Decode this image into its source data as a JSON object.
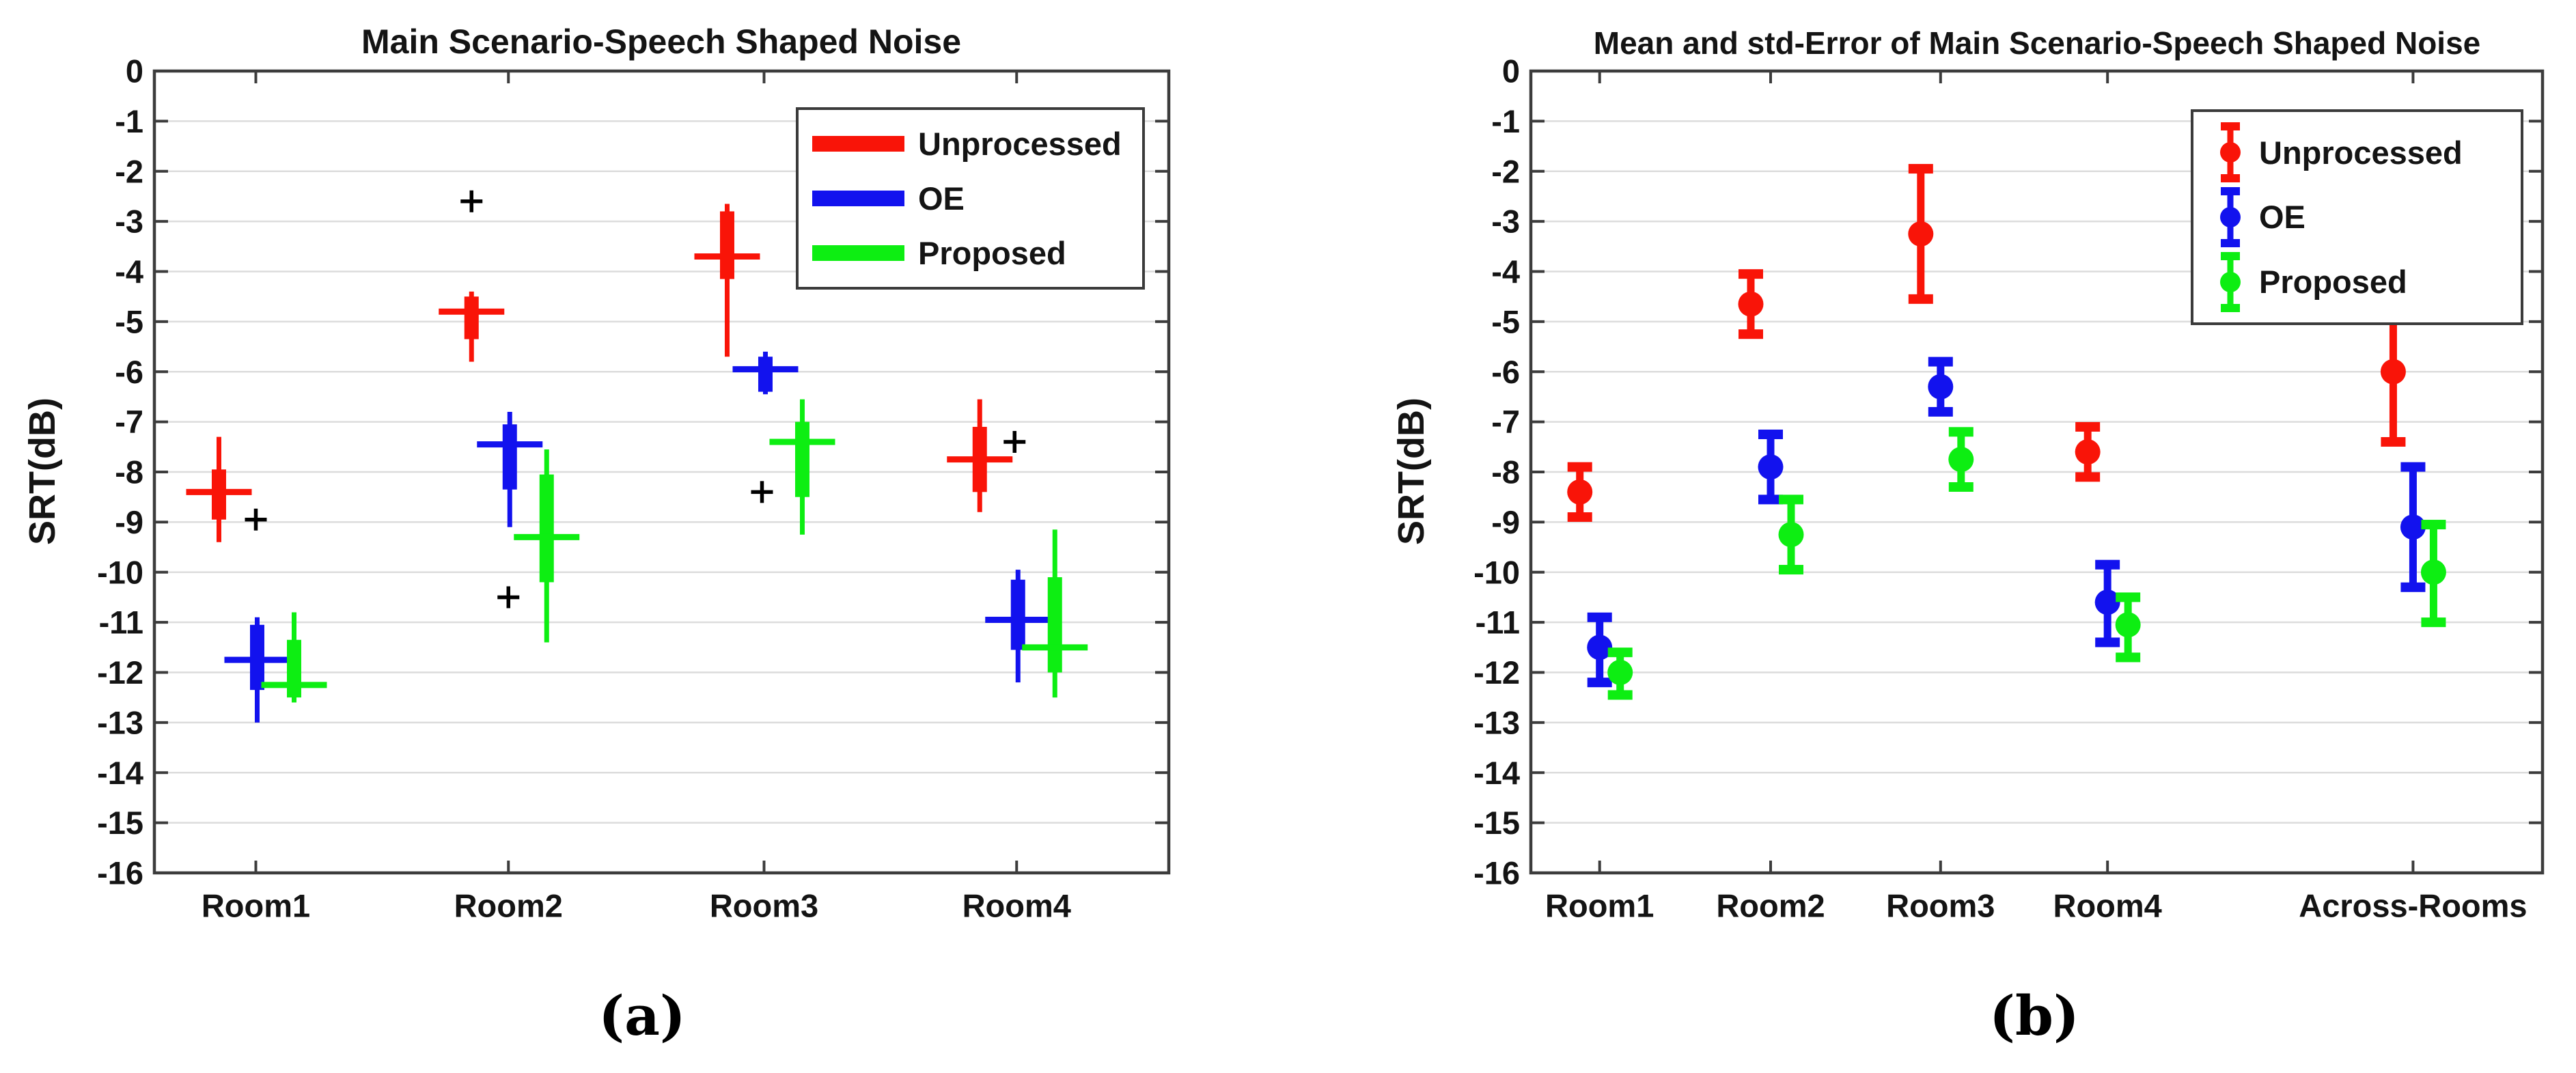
{
  "colors": {
    "red": "#f91408",
    "blue": "#1212ee",
    "green": "#0dee12",
    "outlier": "#000000",
    "grid": "#dcdcdc",
    "frame": "#3c3c3c",
    "text": "#141414"
  },
  "series_labels": [
    "Unprocessed",
    "OE",
    "Proposed"
  ],
  "chart_data": [
    {
      "type": "boxplot",
      "panel": "a",
      "title": "Main Scenario-Speech Shaped Noise",
      "ylabel": "SRT(dB)",
      "caption": "(a)",
      "ylim": [
        -16,
        0
      ],
      "ytick_labels": [
        "0",
        "-1",
        "-2",
        "-3",
        "-4",
        "-5",
        "-6",
        "-7",
        "-8",
        "-9",
        "-10",
        "-11",
        "-12",
        "-13",
        "-14",
        "-15",
        "-16"
      ],
      "categories": [
        "Room1",
        "Room2",
        "Room3",
        "Room4"
      ],
      "grid": "horizontal",
      "legend_position": "top-right",
      "legend": [
        "Unprocessed",
        "OE",
        "Proposed"
      ],
      "series": [
        {
          "name": "Unprocessed",
          "color": "red",
          "boxes": [
            {
              "whisker_low": -9.4,
              "q1": -8.95,
              "median": -8.4,
              "q3": -7.95,
              "whisker_high": -7.3
            },
            {
              "whisker_low": -5.8,
              "q1": -5.35,
              "median": -4.8,
              "q3": -4.5,
              "whisker_high": -4.4
            },
            {
              "whisker_low": -5.7,
              "q1": -4.15,
              "median": -3.7,
              "q3": -2.8,
              "whisker_high": -2.65
            },
            {
              "whisker_low": -8.8,
              "q1": -8.4,
              "median": -7.75,
              "q3": -7.1,
              "whisker_high": -6.55
            }
          ]
        },
        {
          "name": "OE",
          "color": "blue",
          "boxes": [
            {
              "whisker_low": -13.0,
              "q1": -12.35,
              "median": -11.75,
              "q3": -11.05,
              "whisker_high": -10.9
            },
            {
              "whisker_low": -9.1,
              "q1": -8.35,
              "median": -7.45,
              "q3": -7.05,
              "whisker_high": -6.8
            },
            {
              "whisker_low": -6.45,
              "q1": -6.4,
              "median": -5.95,
              "q3": -5.7,
              "whisker_high": -5.6
            },
            {
              "whisker_low": -12.2,
              "q1": -11.55,
              "median": -10.95,
              "q3": -10.15,
              "whisker_high": -9.95
            }
          ]
        },
        {
          "name": "Proposed",
          "color": "green",
          "boxes": [
            {
              "whisker_low": -12.6,
              "q1": -12.5,
              "median": -12.25,
              "q3": -11.35,
              "whisker_high": -10.8
            },
            {
              "whisker_low": -11.4,
              "q1": -10.2,
              "median": -9.3,
              "q3": -8.05,
              "whisker_high": -7.55
            },
            {
              "whisker_low": -9.25,
              "q1": -8.5,
              "median": -7.4,
              "q3": -7.0,
              "whisker_high": -6.55
            },
            {
              "whisker_low": -12.5,
              "q1": -12.0,
              "median": -11.5,
              "q3": -10.1,
              "whisker_high": -9.15
            }
          ]
        }
      ],
      "outliers": [
        {
          "category": "Room1",
          "value": -8.95,
          "dx": 0
        },
        {
          "category": "Room2",
          "value": -2.6,
          "dx": -54
        },
        {
          "category": "Room2",
          "value": -10.5,
          "dx": 0
        },
        {
          "category": "Room3",
          "value": -8.4,
          "dx": -3
        },
        {
          "category": "Room4",
          "value": -7.4,
          "dx": -3
        }
      ]
    },
    {
      "type": "errorbar",
      "panel": "b",
      "title": "Mean and std-Error of Main Scenario-Speech Shaped Noise",
      "ylabel": "SRT(dB)",
      "caption": "(b)",
      "ylim": [
        -16,
        0
      ],
      "ytick_labels": [
        "0",
        "-1",
        "-2",
        "-3",
        "-4",
        "-5",
        "-6",
        "-7",
        "-8",
        "-9",
        "-10",
        "-11",
        "-12",
        "-13",
        "-14",
        "-15",
        "-16"
      ],
      "categories": [
        "Room1",
        "Room2",
        "Room3",
        "Room4",
        "Across-Rooms"
      ],
      "grid": "horizontal",
      "legend_position": "top-right",
      "legend": [
        "Unprocessed",
        "OE",
        "Proposed"
      ],
      "series": [
        {
          "name": "Unprocessed",
          "color": "red",
          "points": [
            {
              "mean": -8.4,
              "low": -8.9,
              "high": -7.9
            },
            {
              "mean": -4.65,
              "low": -5.25,
              "high": -4.05
            },
            {
              "mean": -3.25,
              "low": -4.55,
              "high": -1.95
            },
            {
              "mean": -7.6,
              "low": -8.1,
              "high": -7.1
            },
            {
              "mean": -6.0,
              "low": -7.4,
              "high": -4.6
            }
          ]
        },
        {
          "name": "OE",
          "color": "blue",
          "points": [
            {
              "mean": -11.5,
              "low": -12.2,
              "high": -10.9
            },
            {
              "mean": -7.9,
              "low": -8.55,
              "high": -7.25
            },
            {
              "mean": -6.3,
              "low": -6.8,
              "high": -5.8
            },
            {
              "mean": -10.6,
              "low": -11.4,
              "high": -9.85
            },
            {
              "mean": -9.1,
              "low": -10.3,
              "high": -7.9
            }
          ]
        },
        {
          "name": "Proposed",
          "color": "green",
          "points": [
            {
              "mean": -12.0,
              "low": -12.45,
              "high": -11.6
            },
            {
              "mean": -9.25,
              "low": -9.95,
              "high": -8.55
            },
            {
              "mean": -7.75,
              "low": -8.3,
              "high": -7.2
            },
            {
              "mean": -11.05,
              "low": -11.7,
              "high": -10.5
            },
            {
              "mean": -10.0,
              "low": -11.0,
              "high": -9.05
            }
          ]
        }
      ]
    }
  ]
}
